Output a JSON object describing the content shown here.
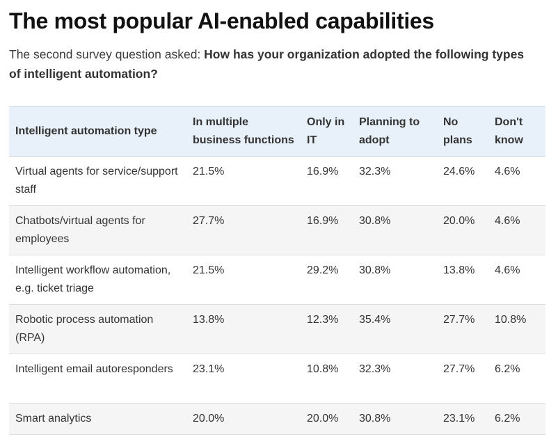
{
  "page": {
    "title": "The most popular AI-enabled capabilities",
    "subtitle_plain": "The second survey question asked: ",
    "subtitle_bold": "How has your organization adopted the following types of intelligent automation?"
  },
  "table": {
    "headers": [
      "Intelligent automation type",
      "In multiple business functions",
      "Only in IT",
      "Planning to adopt",
      "No plans",
      "Don't know"
    ],
    "rows": [
      [
        "Virtual agents for service/support staff",
        "21.5%",
        "16.9%",
        "32.3%",
        "24.6%",
        "4.6%"
      ],
      [
        "Chatbots/virtual agents for employees",
        "27.7%",
        "16.9%",
        "30.8%",
        "20.0%",
        "4.6%"
      ],
      [
        "Intelligent workflow automation, e.g. ticket triage",
        "21.5%",
        "29.2%",
        "30.8%",
        "13.8%",
        "4.6%"
      ],
      [
        "Robotic process automation (RPA)",
        "13.8%",
        "12.3%",
        "35.4%",
        "27.7%",
        "10.8%"
      ],
      [
        "Intelligent email autoresponders",
        "23.1%",
        "10.8%",
        "32.3%",
        "27.7%",
        "6.2%"
      ],
      [
        "Smart analytics",
        "20.0%",
        "20.0%",
        "30.8%",
        "23.1%",
        "6.2%"
      ]
    ]
  },
  "colors": {
    "header_bg": "#e8f1f9",
    "stripe_bg": "#f5f5f5",
    "title": "#111111",
    "text": "#333333"
  }
}
